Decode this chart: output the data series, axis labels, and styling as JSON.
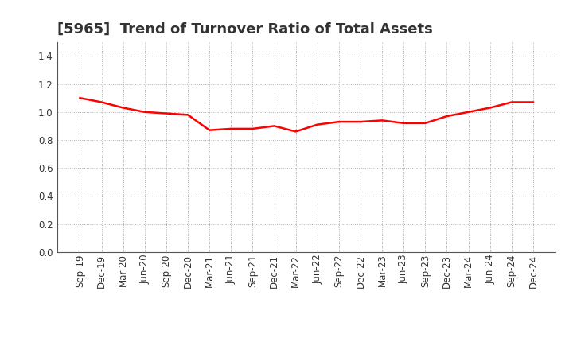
{
  "title": "[5965]  Trend of Turnover Ratio of Total Assets",
  "x_labels": [
    "Sep-19",
    "Dec-19",
    "Mar-20",
    "Jun-20",
    "Sep-20",
    "Dec-20",
    "Mar-21",
    "Jun-21",
    "Sep-21",
    "Dec-21",
    "Mar-22",
    "Jun-22",
    "Sep-22",
    "Dec-22",
    "Mar-23",
    "Jun-23",
    "Sep-23",
    "Dec-23",
    "Mar-24",
    "Jun-24",
    "Sep-24",
    "Dec-24"
  ],
  "y_values": [
    1.1,
    1.07,
    1.03,
    1.0,
    0.99,
    0.98,
    0.87,
    0.88,
    0.88,
    0.9,
    0.86,
    0.91,
    0.93,
    0.93,
    0.94,
    0.92,
    0.92,
    0.97,
    1.0,
    1.03,
    1.07,
    1.07
  ],
  "line_color": "#FF0000",
  "line_width": 1.8,
  "ylim": [
    0.0,
    1.5
  ],
  "yticks": [
    0.0,
    0.2,
    0.4,
    0.6,
    0.8,
    1.0,
    1.2,
    1.4
  ],
  "grid_color": "#aaaaaa",
  "grid_style": "dotted",
  "background_color": "#ffffff",
  "title_color": "#333333",
  "title_fontsize": 13,
  "tick_fontsize": 8.5,
  "tick_color": "#333333"
}
